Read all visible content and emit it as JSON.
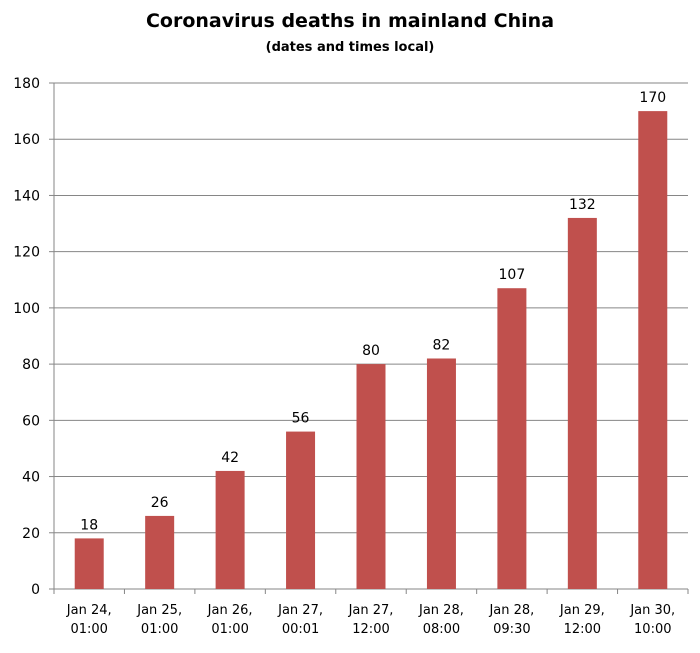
{
  "chart_data": {
    "type": "bar",
    "title": "Coronavirus deaths in mainland China",
    "subtitle": "(dates and times local)",
    "categories": [
      [
        "Jan 24,",
        "01:00"
      ],
      [
        "Jan 25,",
        "01:00"
      ],
      [
        "Jan 26,",
        "01:00"
      ],
      [
        "Jan 27,",
        "00:01"
      ],
      [
        "Jan 27,",
        "12:00"
      ],
      [
        "Jan 28,",
        "08:00"
      ],
      [
        "Jan 28,",
        "09:30"
      ],
      [
        "Jan 29,",
        "12:00"
      ],
      [
        "Jan 30,",
        "10:00"
      ]
    ],
    "values": [
      18,
      26,
      42,
      56,
      80,
      82,
      107,
      132,
      170
    ],
    "ylim": [
      0,
      180
    ],
    "yticks": [
      0,
      20,
      40,
      60,
      80,
      100,
      120,
      140,
      160,
      180
    ],
    "grid": true,
    "data_labels": true,
    "bar_color": "#C0504D",
    "gridline_color": "#868686"
  }
}
